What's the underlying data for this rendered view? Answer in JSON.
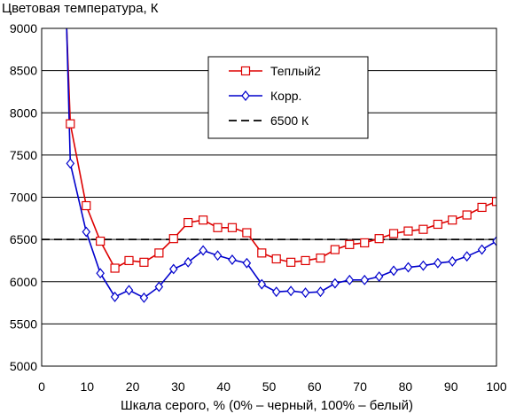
{
  "chart_data": {
    "type": "line",
    "title": "",
    "ylabel": "Цветовая температура, К",
    "xlabel": "Шкала серого, % (0% – черный, 100% – белый)",
    "xlim": [
      0,
      100
    ],
    "ylim": [
      5000,
      9000
    ],
    "x_ticks": [
      "0",
      "10",
      "20",
      "30",
      "40",
      "50",
      "60",
      "70",
      "80",
      "90",
      "100"
    ],
    "y_ticks": [
      "5000",
      "5500",
      "6000",
      "6500",
      "7000",
      "7500",
      "8000",
      "8500",
      "9000"
    ],
    "grid": "horizontal",
    "legend_position": "top-right",
    "x": [
      5.5,
      6.3,
      9.8,
      12.9,
      16.1,
      19.2,
      22.5,
      25.8,
      29.0,
      32.2,
      35.5,
      38.7,
      41.9,
      45.1,
      48.4,
      51.6,
      54.8,
      58.0,
      61.3,
      64.5,
      67.7,
      71.0,
      74.2,
      77.4,
      80.6,
      83.9,
      87.1,
      90.3,
      93.5,
      96.8,
      100
    ],
    "series": [
      {
        "name": "Теплый2",
        "color": "#dd0000",
        "marker": "square",
        "dash": "solid",
        "values": [
          9000,
          7870,
          6900,
          6480,
          6160,
          6250,
          6230,
          6340,
          6510,
          6700,
          6730,
          6640,
          6640,
          6580,
          6340,
          6270,
          6230,
          6250,
          6280,
          6380,
          6440,
          6460,
          6510,
          6570,
          6600,
          6620,
          6680,
          6730,
          6790,
          6880,
          6950
        ]
      },
      {
        "name": "Корр.",
        "color": "#0000cc",
        "marker": "diamond",
        "dash": "solid",
        "values": [
          9000,
          7400,
          6590,
          6100,
          5820,
          5900,
          5810,
          5940,
          6150,
          6230,
          6370,
          6310,
          6260,
          6220,
          5970,
          5880,
          5890,
          5870,
          5880,
          5980,
          6020,
          6020,
          6060,
          6130,
          6170,
          6190,
          6220,
          6240,
          6300,
          6380,
          6480
        ]
      },
      {
        "name": "6500 К",
        "color": "#000000",
        "marker": "none",
        "dash": "dashed",
        "x": [
          0,
          100
        ],
        "values": [
          6500,
          6500
        ]
      }
    ]
  }
}
